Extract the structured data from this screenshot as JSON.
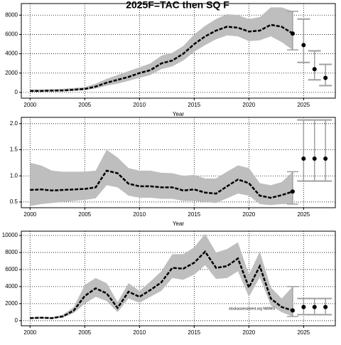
{
  "chart_data": [
    {
      "type": "line",
      "title": "2025F=TAC then SQ F",
      "xlabel": "Year",
      "x": [
        2000,
        2001,
        2002,
        2003,
        2004,
        2005,
        2006,
        2007,
        2008,
        2009,
        2010,
        2011,
        2012,
        2013,
        2014,
        2015,
        2016,
        2017,
        2018,
        2019,
        2020,
        2021,
        2022,
        2023,
        2024
      ],
      "values": [
        150,
        150,
        180,
        200,
        280,
        350,
        600,
        1000,
        1300,
        1600,
        2000,
        2300,
        3000,
        3300,
        4000,
        5000,
        5800,
        6400,
        6800,
        6700,
        6300,
        6400,
        7000,
        6800,
        6100
      ],
      "upper": [
        300,
        300,
        330,
        380,
        450,
        550,
        900,
        1400,
        1800,
        2200,
        2600,
        3000,
        3800,
        4100,
        4800,
        6000,
        6900,
        7600,
        8100,
        8000,
        7600,
        7800,
        8800,
        8800,
        8400
      ],
      "lower": [
        50,
        50,
        80,
        100,
        150,
        250,
        400,
        700,
        900,
        1200,
        1500,
        1800,
        2400,
        2700,
        3300,
        4200,
        4900,
        5500,
        5900,
        5800,
        5300,
        5400,
        5800,
        5200,
        4400
      ],
      "forecast": {
        "x": [
          2025,
          2026,
          2027
        ],
        "values": [
          4900,
          2400,
          1500
        ],
        "lower": [
          3100,
          1300,
          700
        ],
        "upper": [
          7600,
          4300,
          2900
        ]
      },
      "xlim": [
        1999.2,
        2027.9
      ],
      "ylim": [
        -600,
        9200
      ],
      "xticks": [
        2000,
        2005,
        2010,
        2015,
        2020,
        2025
      ],
      "yticks": [
        0,
        2000,
        4000,
        6000,
        8000
      ],
      "grid": true,
      "band_color": "#bebebe",
      "line_color": "#000000",
      "forecast_color": "#a0a0a0"
    },
    {
      "type": "line",
      "xlabel": "Year",
      "x": [
        2000,
        2001,
        2002,
        2003,
        2004,
        2005,
        2006,
        2007,
        2008,
        2009,
        2010,
        2011,
        2012,
        2013,
        2014,
        2015,
        2016,
        2017,
        2018,
        2019,
        2020,
        2021,
        2022,
        2023,
        2024
      ],
      "values": [
        0.73,
        0.74,
        0.72,
        0.73,
        0.74,
        0.75,
        0.78,
        1.1,
        1.05,
        0.85,
        0.8,
        0.8,
        0.78,
        0.78,
        0.72,
        0.74,
        0.68,
        0.66,
        0.8,
        0.93,
        0.86,
        0.62,
        0.58,
        0.63,
        0.7
      ],
      "upper": [
        1.25,
        1.2,
        1.1,
        1.08,
        1.08,
        1.08,
        1.1,
        1.5,
        1.35,
        1.15,
        1.1,
        1.1,
        1.06,
        1.05,
        1.0,
        1.02,
        0.95,
        0.95,
        1.08,
        1.2,
        1.15,
        0.86,
        0.82,
        0.88,
        1.08
      ],
      "lower": [
        0.42,
        0.46,
        0.48,
        0.5,
        0.52,
        0.54,
        0.57,
        0.82,
        0.78,
        0.62,
        0.58,
        0.58,
        0.56,
        0.56,
        0.52,
        0.52,
        0.5,
        0.48,
        0.57,
        0.66,
        0.62,
        0.46,
        0.44,
        0.46,
        0.46
      ],
      "forecast": {
        "x": [
          2025,
          2026,
          2027
        ],
        "values": [
          1.33,
          1.33,
          1.33
        ],
        "lower": [
          0.9,
          0.9,
          0.9
        ],
        "upper": [
          2.07,
          2.07,
          2.07
        ]
      },
      "xlim": [
        1999.2,
        2027.9
      ],
      "ylim": [
        0.39,
        2.12
      ],
      "xticks": [
        2000,
        2005,
        2010,
        2015,
        2020,
        2025
      ],
      "yticks": [
        0.5,
        {
          "value": 1,
          "label": "1.0"
        },
        1.5,
        {
          "value": 2,
          "label": "2.0"
        }
      ],
      "grid": true,
      "band_color": "#bebebe",
      "line_color": "#000000",
      "forecast_color": "#a0a0a0"
    },
    {
      "type": "line",
      "annotation": "stockassessment.org NWWG",
      "x": [
        2000,
        2001,
        2002,
        2003,
        2004,
        2005,
        2006,
        2007,
        2008,
        2009,
        2010,
        2011,
        2012,
        2013,
        2014,
        2015,
        2016,
        2017,
        2018,
        2019,
        2020,
        2021,
        2022,
        2023,
        2024
      ],
      "values": [
        300,
        350,
        300,
        500,
        1200,
        2900,
        3800,
        3200,
        1500,
        3400,
        2800,
        3600,
        4500,
        6200,
        6100,
        6800,
        8100,
        6200,
        6400,
        7300,
        3900,
        6400,
        2600,
        1600,
        1200
      ],
      "upper": [
        400,
        450,
        400,
        700,
        1600,
        4200,
        5000,
        4400,
        2200,
        4400,
        3500,
        4600,
        5800,
        7800,
        7800,
        8600,
        10200,
        8000,
        8400,
        9200,
        5400,
        8100,
        3900,
        2600,
        4000
      ],
      "lower": [
        200,
        250,
        200,
        350,
        900,
        2000,
        2800,
        2300,
        1000,
        2600,
        2100,
        2800,
        3500,
        5000,
        4800,
        5400,
        6500,
        4900,
        5000,
        5800,
        2800,
        5100,
        1800,
        1000,
        500
      ],
      "forecast": {
        "x": [
          2025,
          2026,
          2027
        ],
        "values": [
          1600,
          1600,
          1600
        ],
        "lower": [
          700,
          700,
          700
        ],
        "upper": [
          2600,
          2600,
          2600
        ]
      },
      "xlim": [
        1999.2,
        2027.9
      ],
      "ylim": [
        -600,
        10500
      ],
      "xticks": [
        2000,
        2005,
        2010,
        2015,
        2020,
        2025
      ],
      "yticks": [
        0,
        2000,
        4000,
        6000,
        8000,
        10000
      ],
      "grid": true,
      "band_color": "#bebebe",
      "line_color": "#000000",
      "forecast_color": "#a0a0a0"
    }
  ]
}
